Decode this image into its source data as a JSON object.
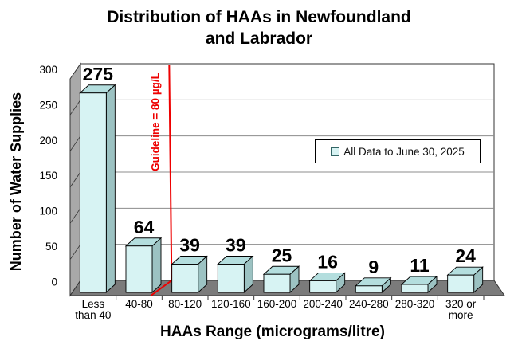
{
  "page": {
    "background": "#ffffff"
  },
  "header": {
    "title_line1": "Distribution of HAAs in Newfoundland",
    "title_line2": "and Labrador"
  },
  "axes": {
    "y_title": "Number of Water Supplies",
    "x_title": "HAAs Range (micrograms/litre)"
  },
  "legend": {
    "label": "All Data to June 30, 2025",
    "marker_fill": "#d7f3f3",
    "marker_border": "#336666"
  },
  "chart_data": {
    "type": "bar",
    "title": "Distribution of HAAs in Newfoundland and Labrador",
    "categories": [
      "Less than 40",
      "40-80",
      "80-120",
      "120-160",
      "160-200",
      "200-240",
      "240-280",
      "280-320",
      "320 or more"
    ],
    "category_lines": [
      [
        "Less",
        "than 40"
      ],
      [
        "40-80"
      ],
      [
        "80-120"
      ],
      [
        "120-160"
      ],
      [
        "160-200"
      ],
      [
        "200-240"
      ],
      [
        "240-280"
      ],
      [
        "280-320"
      ],
      [
        "320 or",
        "more"
      ]
    ],
    "series": [
      {
        "name": "All Data to June 30, 2025",
        "values": [
          275,
          64,
          39,
          39,
          25,
          16,
          9,
          11,
          24
        ]
      }
    ],
    "xlabel": "HAAs Range (micrograms/litre)",
    "ylabel": "Number of Water Supplies",
    "ylim": [
      0,
      300
    ],
    "yticks": [
      0,
      50,
      100,
      150,
      200,
      250,
      300
    ],
    "grid": true,
    "style": "3d-column",
    "legend_position": "center-right",
    "guideline": {
      "label": "Guideline = 80 µg/L",
      "x_value": 80,
      "between_categories": [
        "40-80",
        "80-120"
      ],
      "color": "#ee0000"
    },
    "colors": {
      "bar_front": "#d7f3f3",
      "bar_top": "#b4dede",
      "bar_side": "#9cc2c2",
      "wall": "#a9a9a9",
      "floor": "#7b7b7b",
      "back_wall": "#ffffff",
      "gridline": "#8c8c8c",
      "outline": "#333333",
      "value_label": "#000000"
    }
  }
}
